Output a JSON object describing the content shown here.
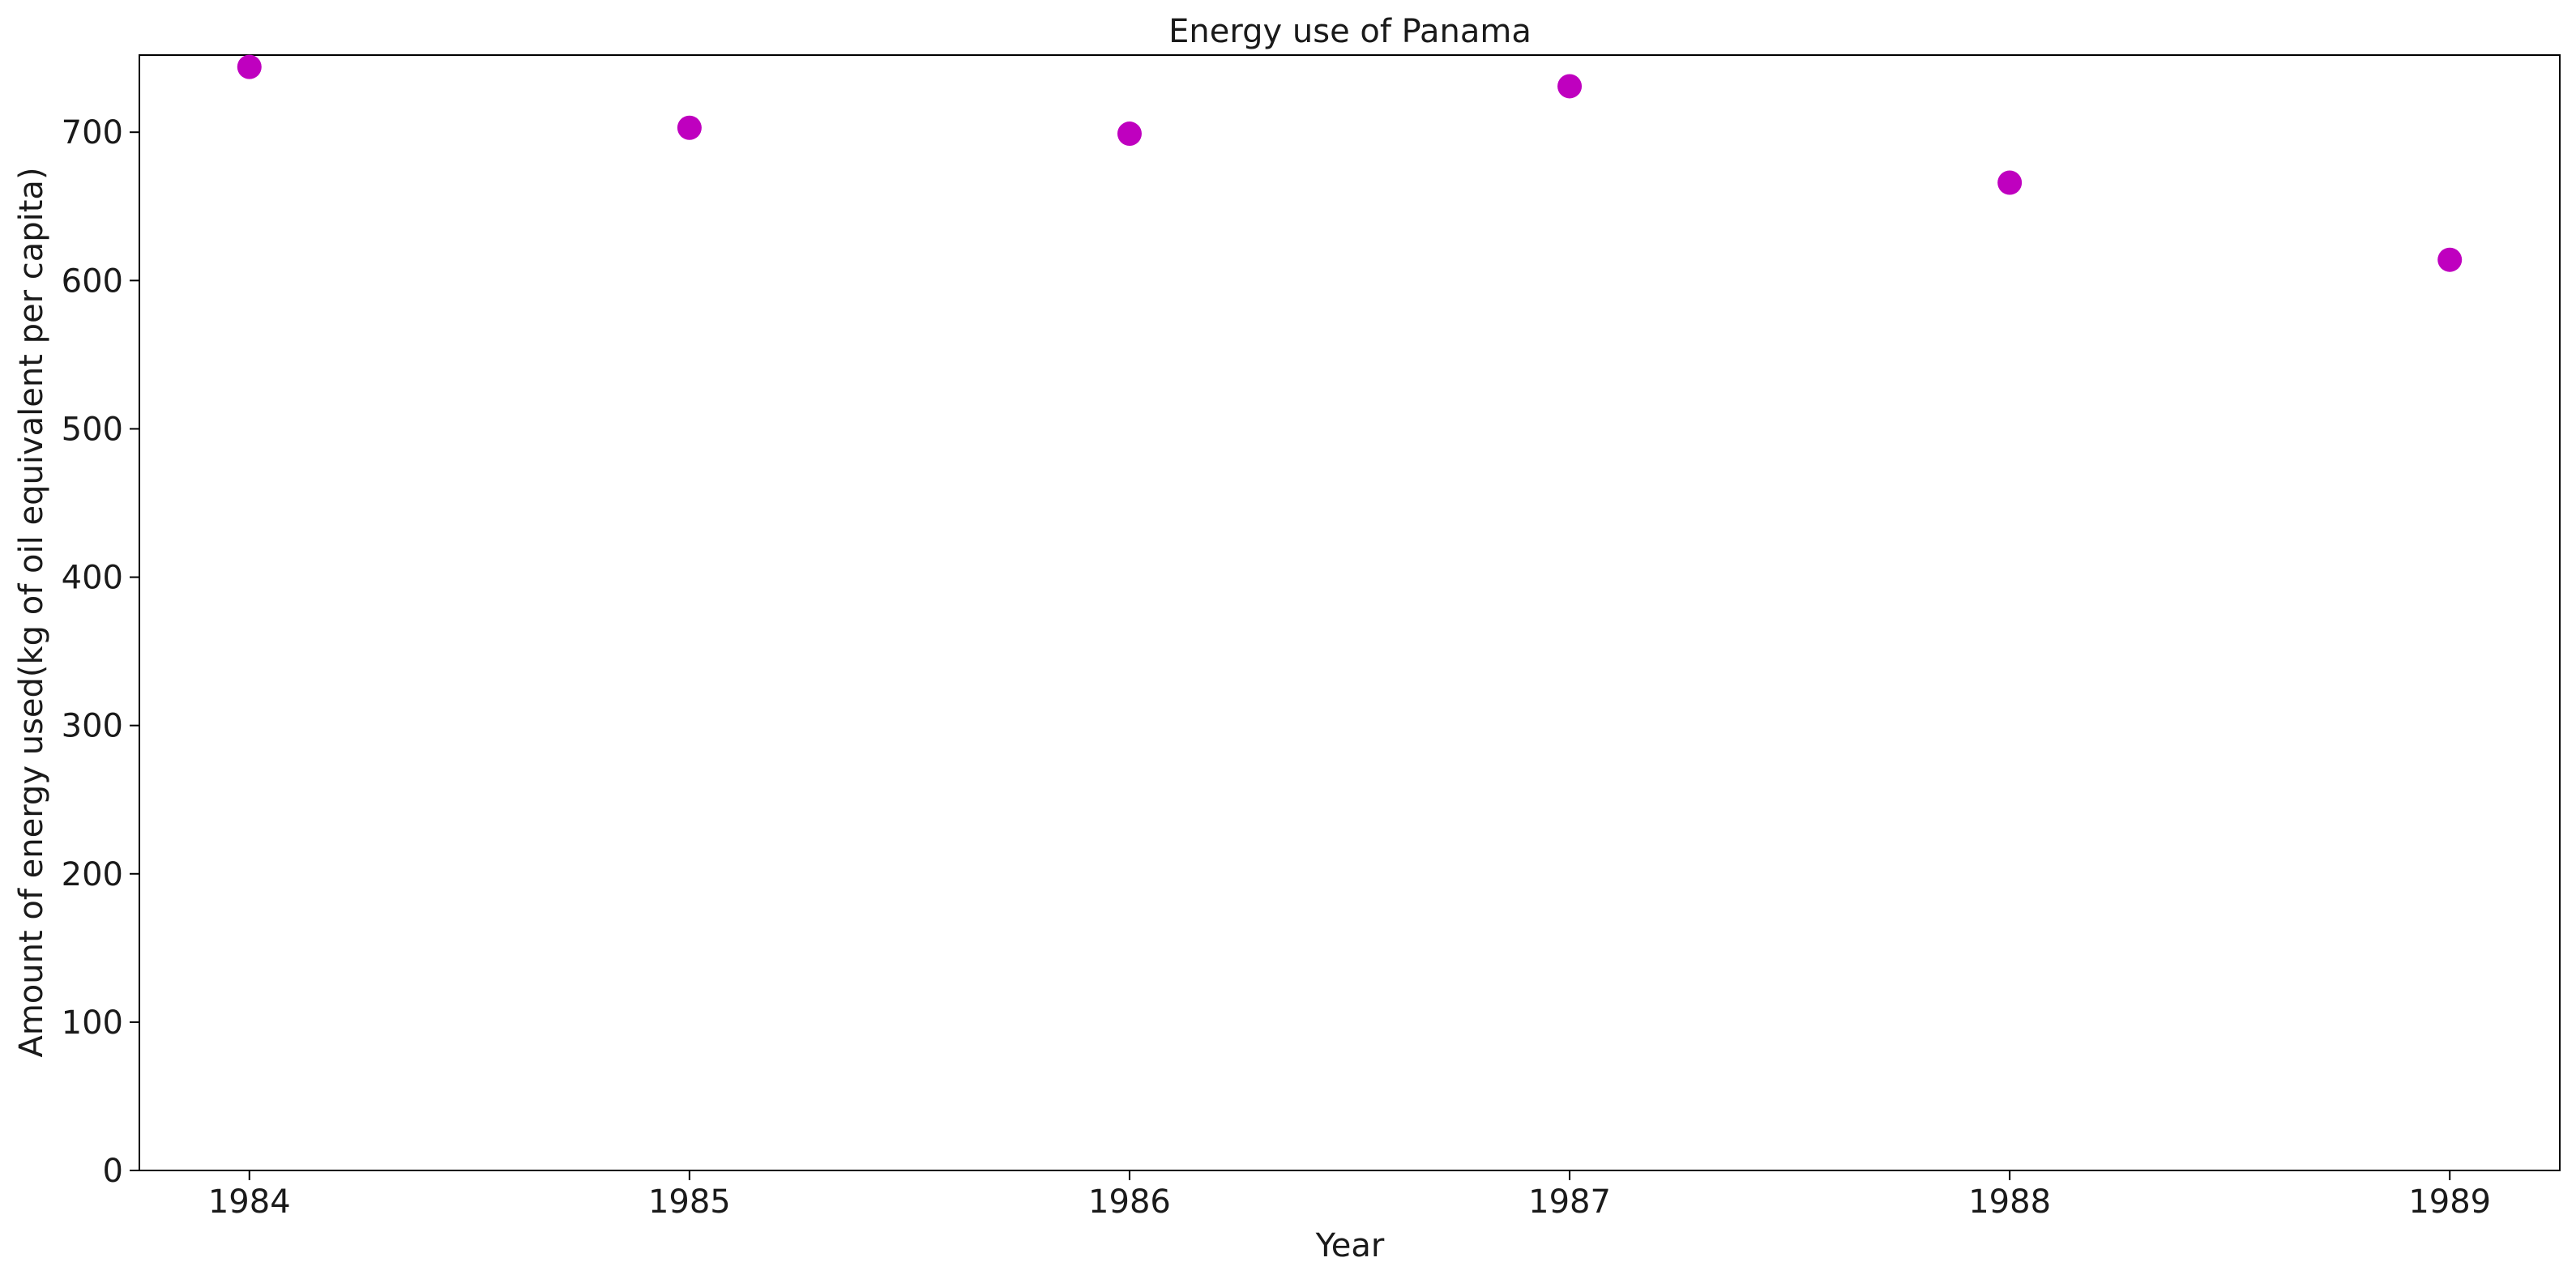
{
  "chart_data": {
    "type": "scatter",
    "title": "Energy use of Panama",
    "xlabel": "Year",
    "ylabel": "Amount of energy used(kg of oil equivalent per capita)",
    "x": [
      1984,
      1985,
      1986,
      1987,
      1988,
      1989
    ],
    "y": [
      744,
      703,
      699,
      731,
      666,
      614
    ],
    "xlim": [
      1983.75,
      1989.25
    ],
    "ylim": [
      0,
      752
    ],
    "xticks": [
      "1984",
      "1985",
      "1986",
      "1987",
      "1988",
      "1989"
    ],
    "yticks": [
      "0",
      "100",
      "200",
      "300",
      "400",
      "500",
      "600",
      "700"
    ],
    "marker_color": "#bf00bf",
    "grid": false,
    "legend": "none"
  }
}
